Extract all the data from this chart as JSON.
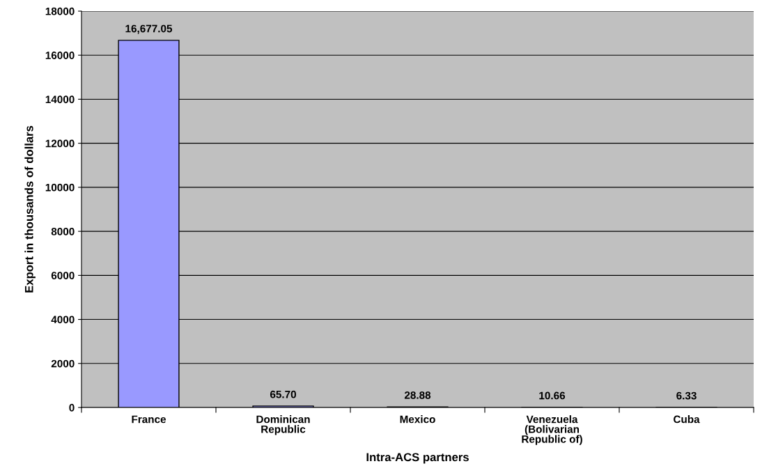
{
  "chart_data": {
    "type": "bar",
    "xlabel": "Intra-ACS partners",
    "ylabel": "Export in thousands of dollars",
    "categories": [
      "France",
      "Dominican\nRepublic",
      "Mexico",
      "Venezuela\n(Bolivarian\nRepublic of)",
      "Cuba"
    ],
    "values": [
      16677.05,
      65.7,
      28.88,
      10.66,
      6.33
    ],
    "value_labels": [
      "16,677.05",
      "65.70",
      "28.88",
      "10.66",
      "6.33"
    ],
    "color": "#9999ff",
    "ylim": [
      0,
      18000
    ],
    "yticks": [
      0,
      2000,
      4000,
      6000,
      8000,
      10000,
      12000,
      14000,
      16000,
      18000
    ],
    "grid": "y"
  }
}
